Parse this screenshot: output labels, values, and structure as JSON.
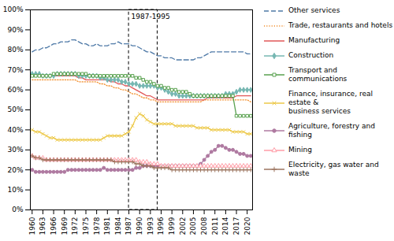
{
  "chart_data": {
    "type": "line",
    "x": [
      1960,
      1961,
      1962,
      1963,
      1964,
      1965,
      1966,
      1967,
      1968,
      1969,
      1970,
      1971,
      1972,
      1973,
      1974,
      1975,
      1976,
      1977,
      1978,
      1979,
      1980,
      1981,
      1982,
      1983,
      1984,
      1985,
      1986,
      1987,
      1988,
      1989,
      1990,
      1991,
      1992,
      1993,
      1994,
      1995,
      1996,
      1997,
      1998,
      1999,
      2000,
      2001,
      2002,
      2003,
      2004,
      2005,
      2006,
      2007,
      2008,
      2009,
      2010,
      2011,
      2012,
      2013,
      2014,
      2015,
      2016,
      2017,
      2018,
      2019,
      2020,
      2021
    ],
    "series": [
      {
        "name": "Other services",
        "line_style": "dashed",
        "marker": "none",
        "values": [
          79,
          80,
          80,
          81,
          81,
          82,
          83,
          83,
          84,
          84,
          84,
          85,
          85,
          84,
          83,
          83,
          82,
          82,
          83,
          82,
          82,
          82,
          83,
          83,
          84,
          83,
          83,
          83,
          82,
          82,
          81,
          80,
          79,
          79,
          78,
          77,
          77,
          76,
          76,
          76,
          75,
          75,
          75,
          75,
          75,
          75,
          76,
          76,
          77,
          78,
          79,
          79,
          79,
          79,
          79,
          79,
          79,
          79,
          79,
          79,
          78,
          78
        ]
      },
      {
        "name": "Trade, restaurants and hotels",
        "line_style": "dotted",
        "marker": "none",
        "values": [
          65,
          65,
          65,
          65,
          65,
          65,
          65,
          65,
          65,
          65,
          65,
          65,
          65,
          64,
          64,
          64,
          64,
          64,
          64,
          63,
          63,
          62,
          62,
          61,
          61,
          60,
          60,
          59,
          58,
          58,
          57,
          56,
          56,
          55,
          55,
          54,
          54,
          54,
          54,
          54,
          54,
          54,
          54,
          54,
          54,
          54,
          54,
          54,
          55,
          55,
          55,
          55,
          55,
          55,
          55,
          55,
          55,
          55,
          55,
          55,
          55,
          54
        ]
      },
      {
        "name": "Manufacturing",
        "line_style": "solid",
        "marker": "none",
        "values": [
          68,
          68,
          68,
          67,
          67,
          67,
          67,
          67,
          67,
          67,
          67,
          67,
          67,
          66,
          66,
          65,
          65,
          65,
          65,
          65,
          65,
          65,
          64,
          64,
          63,
          63,
          62,
          62,
          61,
          60,
          59,
          58,
          57,
          57,
          56,
          55,
          55,
          55,
          55,
          55,
          55,
          55,
          55,
          55,
          55,
          55,
          55,
          55,
          55,
          56,
          56,
          56,
          56,
          56,
          56,
          56,
          56,
          57,
          57,
          57,
          57,
          57
        ]
      },
      {
        "name": "Construction",
        "line_style": "solid",
        "marker": "diamond",
        "values": [
          68,
          68,
          68,
          67,
          67,
          67,
          67,
          68,
          68,
          68,
          68,
          68,
          68,
          67,
          67,
          67,
          67,
          67,
          67,
          66,
          66,
          65,
          65,
          65,
          65,
          64,
          64,
          63,
          63,
          63,
          62,
          62,
          62,
          62,
          62,
          61,
          61,
          60,
          59,
          58,
          58,
          57,
          57,
          57,
          57,
          57,
          57,
          57,
          57,
          57,
          57,
          57,
          57,
          57,
          58,
          58,
          58,
          59,
          60,
          60,
          60,
          60
        ]
      },
      {
        "name": "Transport and communications",
        "line_style": "solid",
        "marker": "open-square",
        "values": [
          67,
          67,
          67,
          67,
          67,
          67,
          68,
          68,
          68,
          68,
          68,
          68,
          68,
          68,
          68,
          68,
          67,
          67,
          67,
          67,
          67,
          67,
          67,
          67,
          67,
          67,
          67,
          67,
          67,
          66,
          66,
          65,
          64,
          64,
          63,
          62,
          62,
          61,
          61,
          60,
          60,
          59,
          59,
          59,
          58,
          57,
          57,
          57,
          57,
          57,
          57,
          57,
          57,
          57,
          57,
          57,
          57,
          47,
          47,
          47,
          47,
          47
        ]
      },
      {
        "name": "Finance, insurance, real estate &\nbusiness services",
        "line_style": "solid",
        "marker": "x",
        "values": [
          40,
          39,
          39,
          38,
          37,
          36,
          36,
          35,
          35,
          35,
          35,
          35,
          35,
          35,
          35,
          35,
          35,
          35,
          35,
          35,
          36,
          37,
          37,
          37,
          37,
          37,
          38,
          39,
          42,
          46,
          48,
          47,
          45,
          44,
          43,
          43,
          43,
          43,
          43,
          43,
          42,
          42,
          42,
          42,
          42,
          42,
          41,
          41,
          41,
          41,
          40,
          40,
          40,
          40,
          40,
          40,
          39,
          39,
          39,
          39,
          38,
          38
        ]
      },
      {
        "name": "Agriculture, forestry and fishing",
        "line_style": "solid",
        "marker": "circle",
        "values": [
          20,
          19,
          19,
          19,
          19,
          19,
          19,
          19,
          19,
          19,
          20,
          20,
          20,
          20,
          20,
          20,
          20,
          20,
          20,
          20,
          21,
          20,
          20,
          20,
          20,
          20,
          20,
          20,
          20,
          21,
          21,
          22,
          22,
          22,
          22,
          22,
          22,
          22,
          22,
          22,
          22,
          22,
          22,
          22,
          22,
          22,
          22,
          23,
          25,
          27,
          29,
          30,
          32,
          32,
          31,
          30,
          30,
          29,
          28,
          28,
          27,
          27
        ]
      },
      {
        "name": "Mining",
        "line_style": "solid",
        "marker": "open-triangle",
        "values": [
          27,
          26,
          26,
          26,
          25,
          25,
          25,
          25,
          25,
          25,
          25,
          25,
          25,
          25,
          25,
          25,
          25,
          25,
          25,
          25,
          25,
          25,
          25,
          25,
          25,
          25,
          25,
          25,
          25,
          25,
          24,
          24,
          24,
          23,
          23,
          23,
          22,
          22,
          22,
          22,
          22,
          22,
          22,
          22,
          22,
          22,
          22,
          22,
          22,
          22,
          22,
          22,
          22,
          22,
          22,
          22,
          22,
          22,
          22,
          22,
          22,
          22
        ]
      },
      {
        "name": "Electricity, gas water and waste",
        "line_style": "solid",
        "marker": "plus",
        "values": [
          27,
          26,
          26,
          25,
          25,
          25,
          25,
          25,
          25,
          25,
          25,
          25,
          25,
          25,
          25,
          25,
          25,
          25,
          25,
          25,
          25,
          25,
          25,
          24,
          24,
          24,
          24,
          24,
          24,
          23,
          23,
          22,
          22,
          22,
          21,
          21,
          21,
          21,
          21,
          20,
          20,
          20,
          20,
          20,
          20,
          20,
          20,
          20,
          20,
          20,
          20,
          20,
          20,
          20,
          20,
          20,
          20,
          20,
          20,
          20,
          20,
          20
        ]
      }
    ],
    "annotations": [
      {
        "text": "1987-1995",
        "x": 1987,
        "y": 98,
        "box": {
          "x1": 1987,
          "x2": 1995,
          "y1": 0,
          "y2": 100
        }
      }
    ],
    "xlim": [
      1959.5,
      2021.5
    ],
    "xticks": [
      1960,
      1963,
      1966,
      1969,
      1972,
      1975,
      1978,
      1981,
      1984,
      1987,
      1990,
      1993,
      1996,
      1999,
      2002,
      2005,
      2008,
      2011,
      2014,
      2017,
      2020
    ],
    "ylim": [
      0,
      100
    ],
    "yticks": [
      {
        "value": 0,
        "label": "0%"
      },
      {
        "value": 10,
        "label": "10%"
      },
      {
        "value": 20,
        "label": "20%"
      },
      {
        "value": 30,
        "label": "30%"
      },
      {
        "value": 40,
        "label": "40%"
      },
      {
        "value": 50,
        "label": "50%"
      },
      {
        "value": 60,
        "label": "60%"
      },
      {
        "value": 70,
        "label": "70%"
      },
      {
        "value": 80,
        "label": "80%"
      },
      {
        "value": 90,
        "label": "90%"
      },
      {
        "value": 100,
        "label": "100%"
      }
    ],
    "grid": false,
    "legend": "right"
  }
}
